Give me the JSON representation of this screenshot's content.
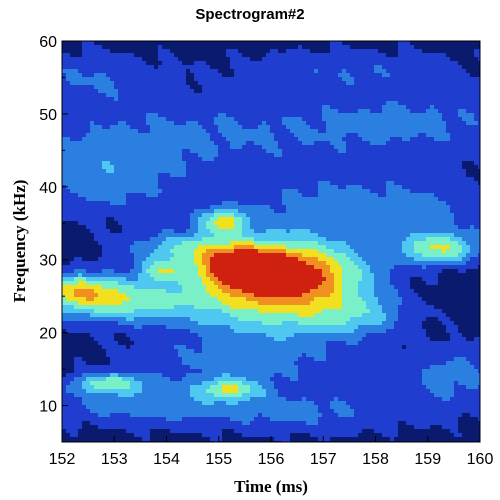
{
  "chart_data": {
    "type": "heatmap",
    "title": "Spectrogram#2",
    "xlabel": "Time (ms)",
    "ylabel": "Frequency (kHz)",
    "xlim": [
      152,
      160
    ],
    "ylim": [
      5,
      60
    ],
    "xticks": [
      152,
      153,
      154,
      155,
      156,
      157,
      158,
      159,
      160
    ],
    "yticks": [
      10,
      20,
      30,
      40,
      50,
      60
    ],
    "grid": false,
    "levels": [
      "#0a1a6e",
      "#1f3ecf",
      "#2a7fe0",
      "#4ec8f0",
      "#7af0c8",
      "#f0e020",
      "#f09020",
      "#d02010"
    ],
    "features": [
      {
        "t": 156.2,
        "f": 27.7,
        "st": 1.0,
        "sf": 3.0,
        "a": 1.0
      },
      {
        "t": 155.4,
        "f": 29.0,
        "st": 0.5,
        "sf": 1.6,
        "a": 0.55
      },
      {
        "t": 155.1,
        "f": 35.2,
        "st": 0.3,
        "sf": 1.2,
        "a": 0.45
      },
      {
        "t": 153.1,
        "f": 24.5,
        "st": 1.1,
        "sf": 2.0,
        "a": 0.45
      },
      {
        "t": 152.3,
        "f": 26.0,
        "st": 0.5,
        "sf": 1.5,
        "a": 0.35
      },
      {
        "t": 154.5,
        "f": 31.5,
        "st": 0.8,
        "sf": 1.5,
        "a": 0.32
      },
      {
        "t": 153.9,
        "f": 28.5,
        "st": 0.3,
        "sf": 1.0,
        "a": 0.35
      },
      {
        "t": 159.2,
        "f": 31.5,
        "st": 0.5,
        "sf": 1.4,
        "a": 0.45
      },
      {
        "t": 152.9,
        "f": 13.0,
        "st": 0.5,
        "sf": 1.0,
        "a": 0.38
      },
      {
        "t": 155.2,
        "f": 12.3,
        "st": 0.4,
        "sf": 1.0,
        "a": 0.38
      },
      {
        "t": 157.6,
        "f": 22.5,
        "st": 0.7,
        "sf": 2.0,
        "a": 0.22
      },
      {
        "t": 156.0,
        "f": 22.0,
        "st": 1.2,
        "sf": 2.5,
        "a": 0.22
      },
      {
        "t": 155.5,
        "f": 16.0,
        "st": 1.5,
        "sf": 3.0,
        "a": 0.17
      },
      {
        "t": 157.8,
        "f": 36.5,
        "st": 2.0,
        "sf": 3.5,
        "a": 0.2
      },
      {
        "t": 154.5,
        "f": 47.0,
        "st": 2.5,
        "sf": 4.0,
        "a": 0.15
      },
      {
        "t": 158.8,
        "f": 49.0,
        "st": 1.5,
        "sf": 3.0,
        "a": 0.14
      },
      {
        "t": 152.8,
        "f": 41.0,
        "st": 1.0,
        "sf": 3.5,
        "a": 0.17
      },
      {
        "t": 153.6,
        "f": 10.0,
        "st": 1.5,
        "sf": 2.0,
        "a": 0.17
      },
      {
        "t": 156.8,
        "f": 9.0,
        "st": 1.5,
        "sf": 2.0,
        "a": 0.14
      },
      {
        "t": 159.5,
        "f": 14.0,
        "st": 0.8,
        "sf": 3.0,
        "a": 0.17
      },
      {
        "t": 152.5,
        "f": 55.0,
        "st": 1.0,
        "sf": 2.5,
        "a": 0.13
      },
      {
        "t": 157.5,
        "f": 56.0,
        "st": 1.5,
        "sf": 2.0,
        "a": 0.12
      }
    ]
  }
}
